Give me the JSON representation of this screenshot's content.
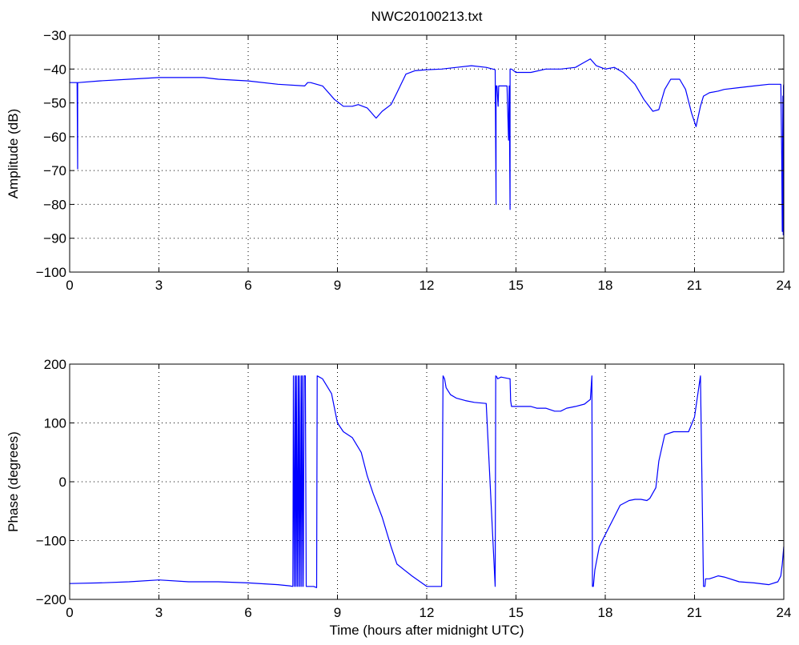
{
  "title": "NWC20100213.txt",
  "colors": {
    "series": "#0000ff",
    "axes": "#000000",
    "background": "#ffffff"
  },
  "chart_data": [
    {
      "type": "line",
      "title": "NWC20100213.txt",
      "xlabel": "",
      "ylabel": "Amplitude (dB)",
      "xlim": [
        0,
        24
      ],
      "ylim": [
        -100,
        -30
      ],
      "xticks": [
        0,
        3,
        6,
        9,
        12,
        15,
        18,
        21,
        24
      ],
      "yticks": [
        -100,
        -90,
        -80,
        -70,
        -60,
        -50,
        -40,
        -30
      ],
      "grid": true,
      "series": [
        {
          "x": [
            0,
            0.25,
            0.27,
            0.27,
            0.3,
            0.3,
            1,
            2,
            3,
            4,
            4.5,
            5,
            6,
            7,
            7.9,
            8,
            8.1,
            8.5,
            8.9,
            9.2,
            9.5,
            9.7,
            10,
            10.3,
            10.5,
            10.8,
            11,
            11.3,
            11.6,
            12,
            12.5,
            13,
            13.5,
            14,
            14.3,
            14.33,
            14.33,
            14.36,
            14.4,
            14.42,
            14.45,
            14.5,
            14.7,
            14.75,
            14.77,
            14.8,
            14.8,
            14.85,
            15,
            15.5,
            16,
            16.5,
            17,
            17.2,
            17.5,
            17.7,
            18,
            18.3,
            18.6,
            19,
            19.3,
            19.6,
            19.8,
            20,
            20.2,
            20.5,
            20.7,
            20.9,
            21.05,
            21.2,
            21.3,
            21.5,
            21.8,
            22,
            22.5,
            23,
            23.5,
            23.9,
            23.93,
            23.95,
            23.97,
            23.98,
            23.99,
            24
          ],
          "y": [
            -44,
            -44,
            -69.5,
            -44,
            -44,
            -44,
            -43.5,
            -43,
            -42.5,
            -42.5,
            -42.5,
            -43,
            -43.5,
            -44.5,
            -45,
            -44,
            -44,
            -45,
            -49,
            -51,
            -51,
            -50.5,
            -51.5,
            -54.5,
            -52.5,
            -50.5,
            -47,
            -41.5,
            -40.5,
            -40.2,
            -40,
            -39.5,
            -39,
            -39.5,
            -40.2,
            -80,
            -45,
            -45,
            -51,
            -45,
            -45,
            -45,
            -45,
            -61,
            -45,
            -81.5,
            -40,
            -40,
            -41,
            -41,
            -40,
            -40,
            -39.5,
            -38.5,
            -37,
            -39,
            -40,
            -39.5,
            -41,
            -44.5,
            -49,
            -52.5,
            -52,
            -46,
            -43,
            -43,
            -46,
            -53,
            -57,
            -51,
            -48,
            -47,
            -46.5,
            -46,
            -45.5,
            -45,
            -44.5,
            -44.5,
            -65,
            -88,
            -48,
            -89,
            -45,
            -44.5
          ]
        }
      ]
    },
    {
      "type": "line",
      "title": "",
      "xlabel": "Time (hours after midnight UTC)",
      "ylabel": "Phase (degrees)",
      "xlim": [
        0,
        24
      ],
      "ylim": [
        -200,
        200
      ],
      "xticks": [
        0,
        3,
        6,
        9,
        12,
        15,
        18,
        21,
        24
      ],
      "yticks": [
        -200,
        -100,
        0,
        100,
        200
      ],
      "grid": true,
      "series": [
        {
          "x": [
            0,
            1,
            2,
            3,
            4,
            5,
            6,
            7,
            7.4,
            7.5,
            7.52,
            7.55,
            7.58,
            7.6,
            7.62,
            7.65,
            7.68,
            7.7,
            7.72,
            7.75,
            7.78,
            7.8,
            7.82,
            7.85,
            7.88,
            7.9,
            7.92,
            7.95,
            8,
            8.2,
            8.3,
            8.32,
            8.5,
            8.8,
            9,
            9.2,
            9.5,
            9.8,
            10,
            10.2,
            10.5,
            10.8,
            11,
            11.5,
            12,
            12.3,
            12.5,
            12.55,
            12.6,
            12.65,
            12.8,
            13,
            13.3,
            13.6,
            14,
            14.3,
            14.32,
            14.36,
            14.38,
            14.5,
            14.8,
            14.82,
            14.85,
            15,
            15.3,
            15.5,
            15.7,
            16,
            16.3,
            16.5,
            16.7,
            17,
            17.3,
            17.5,
            17.55,
            17.57,
            17.6,
            17.65,
            17.8,
            18,
            18.3,
            18.5,
            18.8,
            19,
            19.2,
            19.4,
            19.5,
            19.7,
            19.8,
            20,
            20.3,
            20.5,
            20.8,
            21,
            21.2,
            21.3,
            21.35,
            21.37,
            21.4,
            21.5,
            21.8,
            22,
            22.5,
            23,
            23.5,
            23.8,
            23.9,
            23.95,
            24
          ],
          "y": [
            -173,
            -172,
            -170,
            -167,
            -170,
            -170,
            -172,
            -175,
            -177,
            -178,
            180,
            -178,
            180,
            -178,
            180,
            -178,
            180,
            -178,
            180,
            -178,
            180,
            -178,
            180,
            -178,
            180,
            180,
            180,
            -178,
            -178,
            -178,
            -180,
            180,
            175,
            150,
            100,
            85,
            75,
            50,
            10,
            -20,
            -60,
            -110,
            -140,
            -160,
            -178,
            -178,
            -178,
            180,
            175,
            160,
            148,
            142,
            138,
            135,
            133,
            -178,
            180,
            178,
            175,
            178,
            175,
            138,
            128,
            128,
            128,
            128,
            125,
            125,
            120,
            120,
            125,
            128,
            132,
            140,
            180,
            -178,
            -178,
            -150,
            -110,
            -90,
            -60,
            -40,
            -32,
            -30,
            -30,
            -32,
            -28,
            -10,
            35,
            80,
            85,
            85,
            85,
            110,
            180,
            -178,
            -178,
            -165,
            -165,
            -165,
            -160,
            -162,
            -170,
            -172,
            -175,
            -170,
            -160,
            -140,
            -110
          ]
        }
      ]
    }
  ]
}
